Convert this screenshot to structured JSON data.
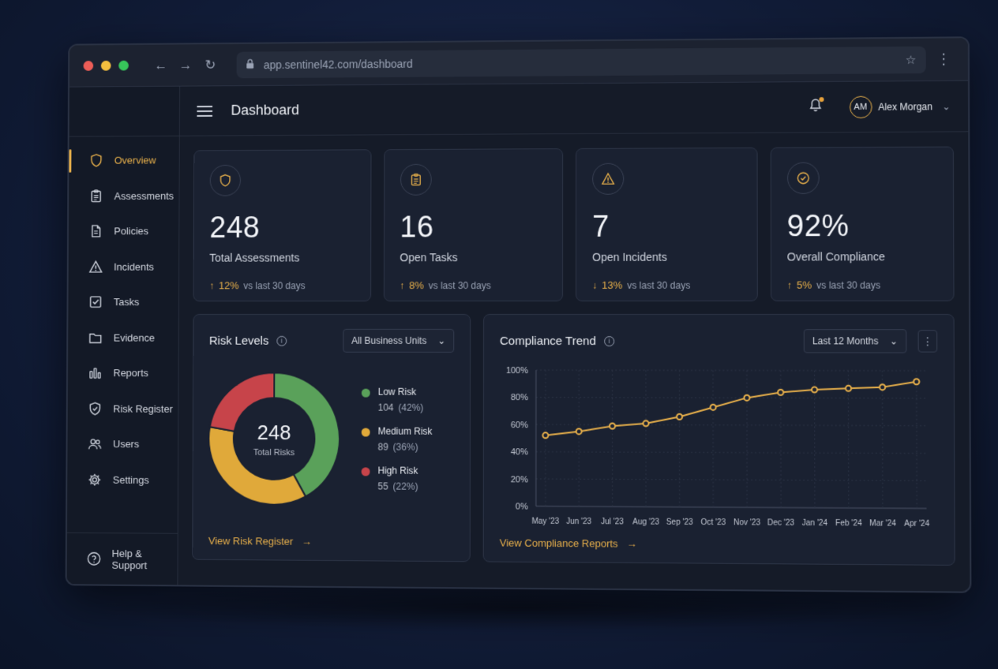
{
  "browser": {
    "url": "app.sentinel42.com/dashboard"
  },
  "header": {
    "title": "Dashboard",
    "user_initials": "AM",
    "user_name": "Alex Morgan"
  },
  "sidebar": {
    "items": [
      {
        "label": "Overview",
        "icon": "shield-icon"
      },
      {
        "label": "Assessments",
        "icon": "clipboard-icon"
      },
      {
        "label": "Policies",
        "icon": "document-icon"
      },
      {
        "label": "Incidents",
        "icon": "warning-icon"
      },
      {
        "label": "Tasks",
        "icon": "checkbox-icon"
      },
      {
        "label": "Evidence",
        "icon": "folder-icon"
      },
      {
        "label": "Reports",
        "icon": "bar-chart-icon"
      },
      {
        "label": "Risk Register",
        "icon": "shield-check-icon"
      },
      {
        "label": "Users",
        "icon": "users-icon"
      },
      {
        "label": "Settings",
        "icon": "gear-icon"
      }
    ],
    "help_label": "Help & Support"
  },
  "kpis": [
    {
      "value": "248",
      "label": "Total Assessments",
      "delta": "12%",
      "direction": "up",
      "compare": "vs last 30 days",
      "icon": "shield-icon"
    },
    {
      "value": "16",
      "label": "Open Tasks",
      "delta": "8%",
      "direction": "up",
      "compare": "vs last 30 days",
      "icon": "clipboard-icon"
    },
    {
      "value": "7",
      "label": "Open Incidents",
      "delta": "13%",
      "direction": "down",
      "compare": "vs last 30 days",
      "icon": "warning-icon"
    },
    {
      "value": "92%",
      "label": "Overall Compliance",
      "delta": "5%",
      "direction": "up",
      "compare": "vs last 30 days",
      "icon": "check-circle-icon"
    }
  ],
  "risk": {
    "title": "Risk Levels",
    "filter": "All Business Units",
    "total": "248",
    "total_label": "Total Risks",
    "link": "View Risk Register",
    "colors": {
      "low": "#5aa15a",
      "medium": "#e0a93a",
      "high": "#c7444a"
    }
  },
  "trend": {
    "title": "Compliance Trend",
    "filter": "Last 12 Months",
    "link": "View Compliance Reports",
    "line_color": "#e8b04b"
  },
  "chart_data": [
    {
      "type": "pie",
      "title": "Risk Levels",
      "categories": [
        "Low Risk",
        "Medium Risk",
        "High Risk"
      ],
      "values": [
        104,
        89,
        55
      ],
      "percents": [
        "42%",
        "36%",
        "22%"
      ],
      "colors": [
        "#5aa15a",
        "#e0a93a",
        "#c7444a"
      ],
      "center_value": "248",
      "center_label": "Total Risks"
    },
    {
      "type": "line",
      "title": "Compliance Trend",
      "x": [
        "May '23",
        "Jun '23",
        "Jul '23",
        "Aug '23",
        "Sep '23",
        "Oct '23",
        "Nov '23",
        "Dec '23",
        "Jan '24",
        "Feb '24",
        "Mar '24",
        "Apr '24"
      ],
      "series": [
        {
          "values": [
            52,
            55,
            59,
            61,
            66,
            73,
            80,
            84,
            86,
            87,
            88,
            92
          ]
        }
      ],
      "ylim": [
        0,
        100
      ],
      "yticks": [
        "0%",
        "20%",
        "40%",
        "60%",
        "80%",
        "100%"
      ],
      "grid": true
    }
  ]
}
